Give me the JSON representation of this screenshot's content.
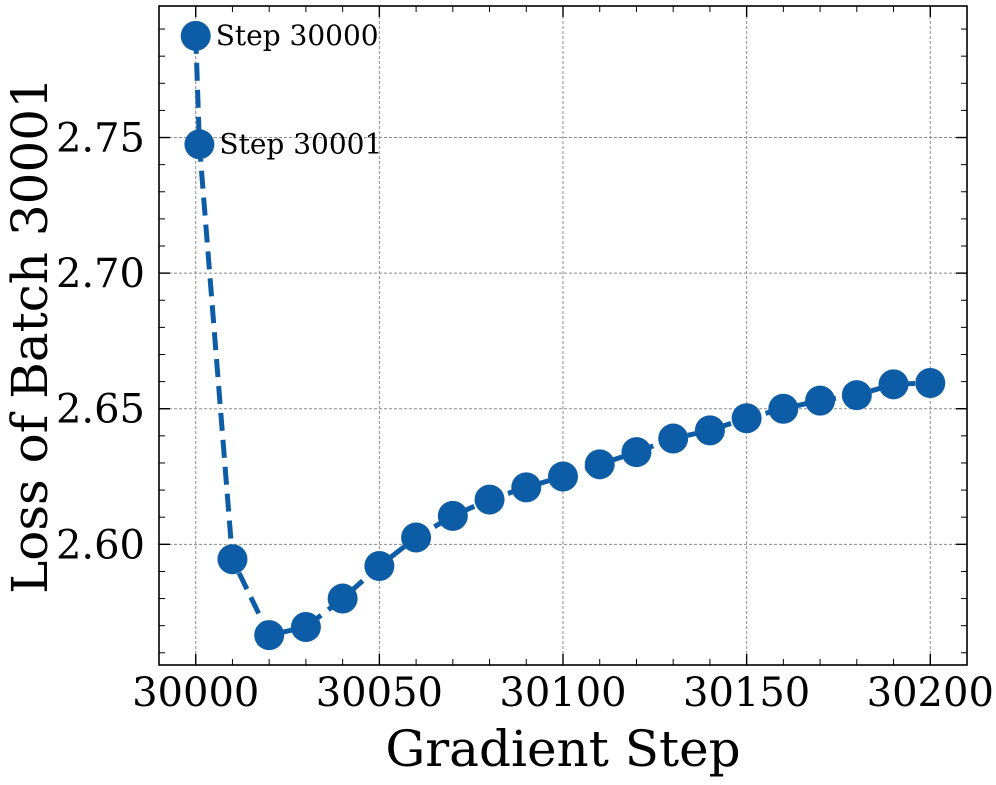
{
  "chart_data": {
    "type": "line",
    "title": "",
    "xlabel": "Gradient Step",
    "ylabel": "Loss of Batch 30001",
    "xlim": [
      29990,
      30210
    ],
    "ylim": [
      2.5555,
      2.7985
    ],
    "xticks": [
      30000,
      30050,
      30100,
      30150,
      30200
    ],
    "xtick_labels": [
      "30000",
      "30050",
      "30100",
      "30150",
      "30200"
    ],
    "yticks": [
      2.6,
      2.65,
      2.7,
      2.75
    ],
    "ytick_labels": [
      "2.60",
      "2.65",
      "2.70",
      "2.75"
    ],
    "grid": true,
    "line_style": "dashed",
    "color": "#0c5da5",
    "x": [
      30000,
      30001,
      30010,
      30020,
      30030,
      30040,
      30050,
      30060,
      30070,
      30080,
      30090,
      30100,
      30110,
      30120,
      30130,
      30140,
      30150,
      30160,
      30170,
      30180,
      30190,
      30200
    ],
    "series": [
      {
        "values": [
          2.7875,
          2.7475,
          2.5945,
          2.5665,
          2.5695,
          2.58,
          2.592,
          2.6025,
          2.6105,
          2.6165,
          2.621,
          2.625,
          2.6295,
          2.634,
          2.639,
          2.642,
          2.6465,
          2.65,
          2.653,
          2.655,
          2.659,
          2.6595
        ]
      }
    ],
    "annotations": [
      {
        "text": "Step 30000",
        "x": 30000,
        "y": 2.7875
      },
      {
        "text": "Step 30001",
        "x": 30001,
        "y": 2.7475
      }
    ]
  }
}
